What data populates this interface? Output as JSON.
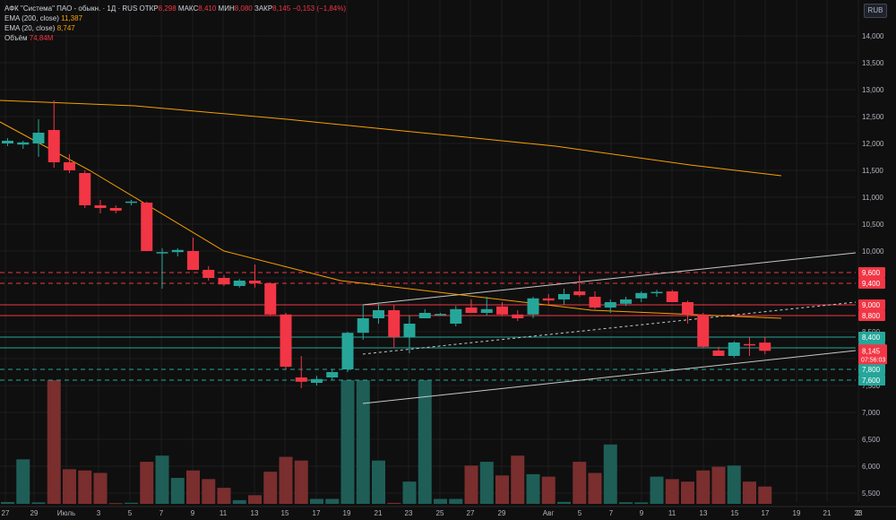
{
  "header": {
    "symbol": "АФК \"Система\" ПАО - обыкн. · 1Д · RUS",
    "open_label": "ОТКР",
    "open": "8,298",
    "high_label": "МАКС",
    "high": "8,410",
    "low_label": "МИН",
    "low": "8,080",
    "close_label": "ЗАКР",
    "close": "8,145",
    "change": "−0,153 (−1,84%)",
    "ema200_label": "EMA (200, close)",
    "ema200_value": "11,387",
    "ema20_label": "EMA (20, close)",
    "ema20_value": "8,747",
    "volume_label": "Объём",
    "volume_value": "74,84M"
  },
  "currency_button": "RUB",
  "colors": {
    "up": "#26a69a",
    "down": "#f23645",
    "up_volume": "#1e5e57",
    "down_volume": "#7a2e2e",
    "ema": "#f7a000",
    "grid": "#1e1e1e",
    "background": "#0f0f0f"
  },
  "chart_data": {
    "type": "candlestick",
    "y_axis_ticks": [
      "5,500",
      "6,000",
      "6,500",
      "7,000",
      "7,500",
      "8,000",
      "8,500",
      "9,000",
      "9,500",
      "10,000",
      "10,500",
      "11,000",
      "11,500",
      "12,000",
      "12,500",
      "13,000",
      "13,500",
      "14,000"
    ],
    "x_axis_ticks": [
      "27",
      "29",
      "Июль",
      "3",
      "5",
      "7",
      "9",
      "11",
      "13",
      "15",
      "17",
      "19",
      "21",
      "23",
      "25",
      "27",
      "29",
      "Авг",
      "5",
      "7",
      "9",
      "11",
      "13",
      "15",
      "17",
      "19",
      "21",
      "23",
      "2"
    ],
    "ylim": [
      5400,
      14400
    ],
    "candles": [
      {
        "o": 12.0,
        "h": 12.1,
        "l": 11.95,
        "c": 12.05
      },
      {
        "o": 11.98,
        "h": 12.05,
        "l": 11.9,
        "c": 12.02
      },
      {
        "o": 12.0,
        "h": 12.45,
        "l": 11.75,
        "c": 12.2
      },
      {
        "o": 12.25,
        "h": 12.8,
        "l": 11.55,
        "c": 11.65
      },
      {
        "o": 11.65,
        "h": 11.8,
        "l": 11.45,
        "c": 11.5
      },
      {
        "o": 11.45,
        "h": 11.5,
        "l": 10.8,
        "c": 10.85
      },
      {
        "o": 10.85,
        "h": 10.95,
        "l": 10.7,
        "c": 10.8
      },
      {
        "o": 10.8,
        "h": 10.85,
        "l": 10.7,
        "c": 10.75
      },
      {
        "o": 10.9,
        "h": 10.95,
        "l": 10.85,
        "c": 10.92
      },
      {
        "o": 10.9,
        "h": 10.92,
        "l": 10.0,
        "c": 10.0
      },
      {
        "o": 9.98,
        "h": 10.05,
        "l": 9.3,
        "c": 9.98
      },
      {
        "o": 9.98,
        "h": 10.05,
        "l": 9.9,
        "c": 10.02
      },
      {
        "o": 10.0,
        "h": 10.25,
        "l": 9.65,
        "c": 9.65
      },
      {
        "o": 9.65,
        "h": 9.72,
        "l": 9.45,
        "c": 9.5
      },
      {
        "o": 9.5,
        "h": 9.55,
        "l": 9.35,
        "c": 9.38
      },
      {
        "o": 9.35,
        "h": 9.48,
        "l": 9.32,
        "c": 9.45
      },
      {
        "o": 9.45,
        "h": 9.75,
        "l": 9.32,
        "c": 9.4
      },
      {
        "o": 9.4,
        "h": 9.42,
        "l": 8.8,
        "c": 8.82
      },
      {
        "o": 8.82,
        "h": 8.85,
        "l": 7.8,
        "c": 7.85
      },
      {
        "o": 7.65,
        "h": 8.05,
        "l": 7.45,
        "c": 7.57
      },
      {
        "o": 7.55,
        "h": 7.68,
        "l": 7.5,
        "c": 7.62
      },
      {
        "o": 7.65,
        "h": 7.8,
        "l": 7.6,
        "c": 7.75
      },
      {
        "o": 7.8,
        "h": 8.5,
        "l": 7.75,
        "c": 8.48
      },
      {
        "o": 8.48,
        "h": 9.0,
        "l": 8.35,
        "c": 8.75
      },
      {
        "o": 8.75,
        "h": 9.05,
        "l": 8.65,
        "c": 8.9
      },
      {
        "o": 8.9,
        "h": 9.0,
        "l": 8.2,
        "c": 8.4
      },
      {
        "o": 8.4,
        "h": 8.8,
        "l": 8.1,
        "c": 8.65
      },
      {
        "o": 8.75,
        "h": 8.92,
        "l": 8.75,
        "c": 8.85
      },
      {
        "o": 8.82,
        "h": 8.85,
        "l": 8.8,
        "c": 8.83
      },
      {
        "o": 8.65,
        "h": 8.98,
        "l": 8.6,
        "c": 8.92
      },
      {
        "o": 8.95,
        "h": 9.1,
        "l": 8.85,
        "c": 8.85
      },
      {
        "o": 8.85,
        "h": 9.15,
        "l": 8.8,
        "c": 8.92
      },
      {
        "o": 8.97,
        "h": 9.05,
        "l": 8.8,
        "c": 8.82
      },
      {
        "o": 8.82,
        "h": 8.9,
        "l": 8.7,
        "c": 8.75
      },
      {
        "o": 8.82,
        "h": 9.15,
        "l": 8.75,
        "c": 9.12
      },
      {
        "o": 9.12,
        "h": 9.2,
        "l": 9.0,
        "c": 9.08
      },
      {
        "o": 9.1,
        "h": 9.3,
        "l": 9.0,
        "c": 9.2
      },
      {
        "o": 9.25,
        "h": 9.55,
        "l": 9.15,
        "c": 9.18
      },
      {
        "o": 9.15,
        "h": 9.25,
        "l": 8.92,
        "c": 8.95
      },
      {
        "o": 8.95,
        "h": 9.1,
        "l": 8.85,
        "c": 9.05
      },
      {
        "o": 9.02,
        "h": 9.15,
        "l": 8.98,
        "c": 9.1
      },
      {
        "o": 9.12,
        "h": 9.25,
        "l": 9.05,
        "c": 9.22
      },
      {
        "o": 9.22,
        "h": 9.28,
        "l": 9.15,
        "c": 9.24
      },
      {
        "o": 9.25,
        "h": 9.28,
        "l": 9.05,
        "c": 9.05
      },
      {
        "o": 9.05,
        "h": 9.08,
        "l": 8.65,
        "c": 8.82
      },
      {
        "o": 8.82,
        "h": 8.85,
        "l": 8.2,
        "c": 8.22
      },
      {
        "o": 8.15,
        "h": 8.22,
        "l": 8.05,
        "c": 8.05
      },
      {
        "o": 8.05,
        "h": 8.32,
        "l": 8.02,
        "c": 8.3
      },
      {
        "o": 8.27,
        "h": 8.4,
        "l": 8.05,
        "c": 8.25
      },
      {
        "o": 8.298,
        "h": 8.41,
        "l": 8.08,
        "c": 8.145
      }
    ],
    "volume_ylim": [
      0,
      100
    ],
    "volumes": [
      1.5,
      36,
      1.2,
      100,
      28,
      27,
      25,
      0.6,
      0.9,
      34,
      39,
      21,
      27,
      20,
      13,
      3,
      7,
      26,
      38,
      35,
      4,
      4,
      100,
      100,
      35,
      0.8,
      18,
      100,
      4,
      4,
      31,
      34,
      23,
      39,
      24,
      22,
      1.6,
      34,
      25,
      48,
      1.3,
      1.2,
      22,
      20,
      18,
      27,
      30,
      31,
      18,
      14
    ],
    "ema200": [
      12.8,
      12.7,
      12.45,
      12.2,
      11.95,
      11.6,
      11.4
    ],
    "ema20": [
      12.4,
      11.5,
      10.0,
      9.45,
      8.9,
      8.75
    ],
    "horizontal_levels": [
      {
        "label": "9,600",
        "value": 9.6,
        "style": "dashed",
        "color": "#f23645"
      },
      {
        "label": "9,400",
        "value": 9.4,
        "style": "dashed",
        "color": "#f23645"
      },
      {
        "label": "9,000",
        "value": 9.0,
        "style": "solid",
        "color": "#f23645"
      },
      {
        "label": "8,800",
        "value": 8.8,
        "style": "solid",
        "color": "#f23645"
      },
      {
        "label": "8,400",
        "value": 8.4,
        "style": "solid",
        "color": "#26a69a"
      },
      {
        "label": "8,200",
        "value": 8.2,
        "style": "solid",
        "color": "#26a69a"
      },
      {
        "label": "7,800",
        "value": 7.8,
        "style": "dashed",
        "color": "#26a69a"
      },
      {
        "label": "7,600",
        "value": 7.6,
        "style": "dashed",
        "color": "#26a69a"
      }
    ],
    "current_price_label": "8,145",
    "countdown": "07:56:03"
  }
}
